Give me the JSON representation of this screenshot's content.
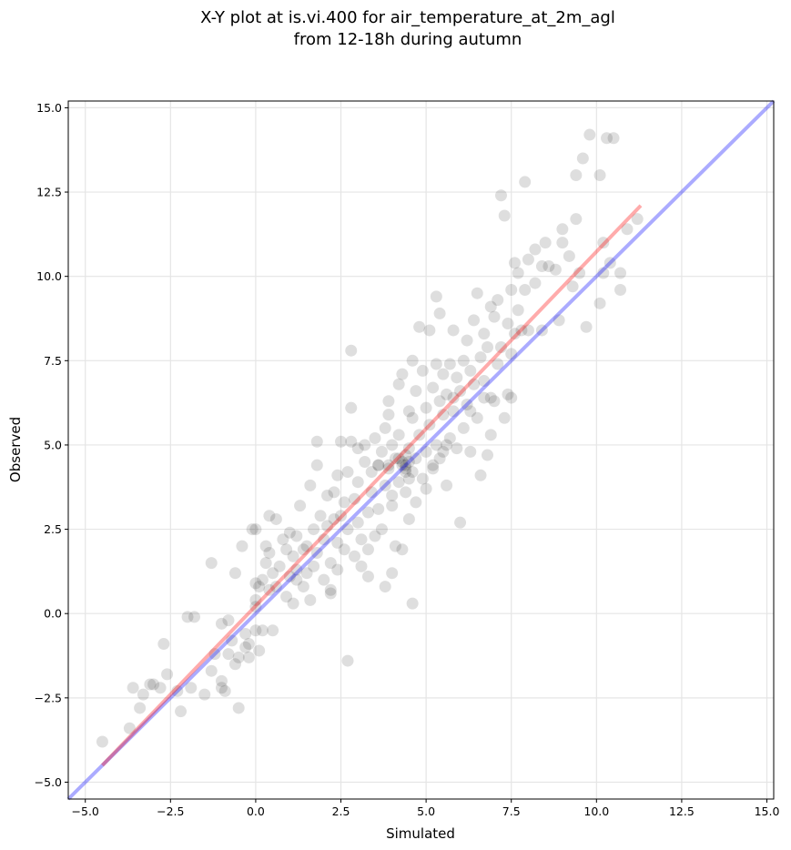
{
  "chart_data": {
    "type": "scatter",
    "title_line1": "X-Y plot at is.vi.400 for air_temperature_at_2m_agl",
    "title_line2": "from 12-18h during autumn",
    "xlabel": "Simulated",
    "ylabel": "Observed",
    "xlim": [
      -5.5,
      15.2
    ],
    "ylim": [
      -5.5,
      15.2
    ],
    "xticks": [
      -5.0,
      -2.5,
      0.0,
      2.5,
      5.0,
      7.5,
      10.0,
      12.5,
      15.0
    ],
    "yticks": [
      -5.0,
      -2.5,
      0.0,
      2.5,
      5.0,
      7.5,
      10.0,
      12.5,
      15.0
    ],
    "xtick_labels": [
      "−5.0",
      "−2.5",
      "0.0",
      "2.5",
      "5.0",
      "7.5",
      "10.0",
      "12.5",
      "15.0"
    ],
    "ytick_labels": [
      "−5.0",
      "−2.5",
      "0.0",
      "2.5",
      "5.0",
      "7.5",
      "10.0",
      "12.5",
      "15.0"
    ],
    "grid": true,
    "colors": {
      "points": "#000000",
      "regression_line": "#ff0000",
      "identity_line": "#0000ff",
      "grid": "#e5e5e5"
    },
    "regression_line": {
      "x": [
        -4.5,
        11.3
      ],
      "y": [
        -4.5,
        12.1
      ]
    },
    "identity_line": {
      "x": [
        -5.5,
        15.2
      ],
      "y": [
        -5.5,
        15.2
      ]
    },
    "points": [
      [
        -4.5,
        -3.8
      ],
      [
        -3.7,
        -3.4
      ],
      [
        -3.6,
        -2.2
      ],
      [
        -3.4,
        -2.8
      ],
      [
        -3.3,
        -2.4
      ],
      [
        -3.1,
        -2.1
      ],
      [
        -3.0,
        -2.1
      ],
      [
        -2.7,
        -0.9
      ],
      [
        -2.6,
        -1.8
      ],
      [
        -2.8,
        -2.2
      ],
      [
        -2.3,
        -2.3
      ],
      [
        -2.2,
        -2.9
      ],
      [
        -2.0,
        -0.1
      ],
      [
        -1.8,
        -0.1
      ],
      [
        -1.5,
        -2.4
      ],
      [
        -1.3,
        1.5
      ],
      [
        -1.3,
        -1.7
      ],
      [
        -1.2,
        -1.2
      ],
      [
        -1.0,
        -0.3
      ],
      [
        -1.0,
        -2.0
      ],
      [
        -1.0,
        -2.2
      ],
      [
        -0.9,
        -2.3
      ],
      [
        -0.8,
        -0.2
      ],
      [
        -0.8,
        -1.2
      ],
      [
        -0.7,
        -0.8
      ],
      [
        -0.6,
        -1.5
      ],
      [
        -0.6,
        1.2
      ],
      [
        -0.5,
        -1.3
      ],
      [
        -0.5,
        -2.8
      ],
      [
        -0.4,
        2.0
      ],
      [
        -0.3,
        -0.6
      ],
      [
        -0.3,
        -1.0
      ],
      [
        -0.2,
        -1.3
      ],
      [
        -0.1,
        2.5
      ],
      [
        0.0,
        2.5
      ],
      [
        0.0,
        0.9
      ],
      [
        -0.2,
        -0.9
      ],
      [
        0.0,
        -0.5
      ],
      [
        0.0,
        0.2
      ],
      [
        0.0,
        0.4
      ],
      [
        0.1,
        0.8
      ],
      [
        0.1,
        -1.1
      ],
      [
        0.2,
        -0.5
      ],
      [
        0.2,
        1.0
      ],
      [
        0.3,
        1.5
      ],
      [
        0.3,
        2.0
      ],
      [
        0.4,
        1.8
      ],
      [
        0.4,
        2.9
      ],
      [
        0.5,
        -0.5
      ],
      [
        0.5,
        1.2
      ],
      [
        0.6,
        0.8
      ],
      [
        0.6,
        2.8
      ],
      [
        0.7,
        1.4
      ],
      [
        0.8,
        2.2
      ],
      [
        0.9,
        1.9
      ],
      [
        0.9,
        0.5
      ],
      [
        1.0,
        1.1
      ],
      [
        1.0,
        2.4
      ],
      [
        1.1,
        1.7
      ],
      [
        1.1,
        0.3
      ],
      [
        1.2,
        1.3
      ],
      [
        1.2,
        1.0
      ],
      [
        1.3,
        3.2
      ],
      [
        1.4,
        1.9
      ],
      [
        1.4,
        0.8
      ],
      [
        1.5,
        1.2
      ],
      [
        1.5,
        2.0
      ],
      [
        1.6,
        3.8
      ],
      [
        1.6,
        0.4
      ],
      [
        1.7,
        2.5
      ],
      [
        1.7,
        1.4
      ],
      [
        1.8,
        1.8
      ],
      [
        1.8,
        5.1
      ],
      [
        1.8,
        4.4
      ],
      [
        1.9,
        2.9
      ],
      [
        2.0,
        2.2
      ],
      [
        2.0,
        1.0
      ],
      [
        2.1,
        2.6
      ],
      [
        2.1,
        3.5
      ],
      [
        2.2,
        1.5
      ],
      [
        2.2,
        0.7
      ],
      [
        2.3,
        2.8
      ],
      [
        2.3,
        3.6
      ],
      [
        2.4,
        2.1
      ],
      [
        2.4,
        1.3
      ],
      [
        2.4,
        4.1
      ],
      [
        2.5,
        5.1
      ],
      [
        2.5,
        2.9
      ],
      [
        2.6,
        3.3
      ],
      [
        2.6,
        1.9
      ],
      [
        2.7,
        2.5
      ],
      [
        2.7,
        4.2
      ],
      [
        2.8,
        5.1
      ],
      [
        2.8,
        6.1
      ],
      [
        2.8,
        7.8
      ],
      [
        2.9,
        3.4
      ],
      [
        2.9,
        1.7
      ],
      [
        3.0,
        2.7
      ],
      [
        3.0,
        4.9
      ],
      [
        3.0,
        3.9
      ],
      [
        3.1,
        1.4
      ],
      [
        3.1,
        2.2
      ],
      [
        3.2,
        4.5
      ],
      [
        3.2,
        5.0
      ],
      [
        3.3,
        3.0
      ],
      [
        3.3,
        1.9
      ],
      [
        3.4,
        3.6
      ],
      [
        3.4,
        4.2
      ],
      [
        3.5,
        2.3
      ],
      [
        3.5,
        5.2
      ],
      [
        3.6,
        4.4
      ],
      [
        3.6,
        3.1
      ],
      [
        3.7,
        4.8
      ],
      [
        3.7,
        2.5
      ],
      [
        3.8,
        5.5
      ],
      [
        3.8,
        0.8
      ],
      [
        3.8,
        3.8
      ],
      [
        3.9,
        4.3
      ],
      [
        3.9,
        6.3
      ],
      [
        4.0,
        3.2
      ],
      [
        4.0,
        5.0
      ],
      [
        4.0,
        1.2
      ],
      [
        4.0,
        3.5
      ],
      [
        4.1,
        4.6
      ],
      [
        4.1,
        2.0
      ],
      [
        4.2,
        6.8
      ],
      [
        4.2,
        3.9
      ],
      [
        4.2,
        5.3
      ],
      [
        4.3,
        7.1
      ],
      [
        4.3,
        4.5
      ],
      [
        4.3,
        1.9
      ],
      [
        4.4,
        4.3
      ],
      [
        4.4,
        4.7
      ],
      [
        4.4,
        3.6
      ],
      [
        4.5,
        4.9
      ],
      [
        4.5,
        6.0
      ],
      [
        4.5,
        2.8
      ],
      [
        4.6,
        5.8
      ],
      [
        4.6,
        4.2
      ],
      [
        4.6,
        0.3
      ],
      [
        4.7,
        6.6
      ],
      [
        4.7,
        4.6
      ],
      [
        4.7,
        3.3
      ],
      [
        4.8,
        8.5
      ],
      [
        4.8,
        5.3
      ],
      [
        4.9,
        4.0
      ],
      [
        4.9,
        7.2
      ],
      [
        5.0,
        6.1
      ],
      [
        5.0,
        4.8
      ],
      [
        5.0,
        3.7
      ],
      [
        5.1,
        8.4
      ],
      [
        5.1,
        5.6
      ],
      [
        5.2,
        4.3
      ],
      [
        5.2,
        6.7
      ],
      [
        5.3,
        9.4
      ],
      [
        5.3,
        5.0
      ],
      [
        5.4,
        6.3
      ],
      [
        5.4,
        8.9
      ],
      [
        5.4,
        4.6
      ],
      [
        5.5,
        7.1
      ],
      [
        5.5,
        5.9
      ],
      [
        5.6,
        3.8
      ],
      [
        5.6,
        6.5
      ],
      [
        5.7,
        7.4
      ],
      [
        5.7,
        5.2
      ],
      [
        5.8,
        8.4
      ],
      [
        5.8,
        6.0
      ],
      [
        5.9,
        7.0
      ],
      [
        5.9,
        4.9
      ],
      [
        6.0,
        2.7
      ],
      [
        6.0,
        6.6
      ],
      [
        6.1,
        7.5
      ],
      [
        6.1,
        5.5
      ],
      [
        6.2,
        8.1
      ],
      [
        6.2,
        6.2
      ],
      [
        6.3,
        7.2
      ],
      [
        6.3,
        4.8
      ],
      [
        6.4,
        8.7
      ],
      [
        6.4,
        6.8
      ],
      [
        6.5,
        5.8
      ],
      [
        6.5,
        9.5
      ],
      [
        6.6,
        7.6
      ],
      [
        6.6,
        4.1
      ],
      [
        6.7,
        8.3
      ],
      [
        6.7,
        6.4
      ],
      [
        6.8,
        7.9
      ],
      [
        6.8,
        4.7
      ],
      [
        6.9,
        9.1
      ],
      [
        6.9,
        5.3
      ],
      [
        7.0,
        8.8
      ],
      [
        7.0,
        6.3
      ],
      [
        7.1,
        7.4
      ],
      [
        7.1,
        9.3
      ],
      [
        7.2,
        12.4
      ],
      [
        7.2,
        7.9
      ],
      [
        7.3,
        5.8
      ],
      [
        7.3,
        11.8
      ],
      [
        7.4,
        6.5
      ],
      [
        7.4,
        8.6
      ],
      [
        7.5,
        9.6
      ],
      [
        7.5,
        7.7
      ],
      [
        7.6,
        10.4
      ],
      [
        7.6,
        8.3
      ],
      [
        7.7,
        10.1
      ],
      [
        7.7,
        9.0
      ],
      [
        7.8,
        8.4
      ],
      [
        7.9,
        12.8
      ],
      [
        7.9,
        9.6
      ],
      [
        8.0,
        10.5
      ],
      [
        8.0,
        8.4
      ],
      [
        8.2,
        10.8
      ],
      [
        8.2,
        9.8
      ],
      [
        8.4,
        10.3
      ],
      [
        8.4,
        8.4
      ],
      [
        8.5,
        11.0
      ],
      [
        8.6,
        10.3
      ],
      [
        8.8,
        10.2
      ],
      [
        8.9,
        8.7
      ],
      [
        9.0,
        11.4
      ],
      [
        9.0,
        11.0
      ],
      [
        9.2,
        10.6
      ],
      [
        9.3,
        9.7
      ],
      [
        9.4,
        13.0
      ],
      [
        9.4,
        11.7
      ],
      [
        9.5,
        10.1
      ],
      [
        9.6,
        13.5
      ],
      [
        9.7,
        8.5
      ],
      [
        9.8,
        14.2
      ],
      [
        10.1,
        13.0
      ],
      [
        10.1,
        9.2
      ],
      [
        10.2,
        11.0
      ],
      [
        10.2,
        10.1
      ],
      [
        10.3,
        14.1
      ],
      [
        10.4,
        10.4
      ],
      [
        10.5,
        14.1
      ],
      [
        10.7,
        9.6
      ],
      [
        10.7,
        10.1
      ],
      [
        10.9,
        11.4
      ],
      [
        11.2,
        11.7
      ],
      [
        2.7,
        -1.4
      ],
      [
        -1.9,
        -2.2
      ],
      [
        2.2,
        0.6
      ],
      [
        3.3,
        1.1
      ],
      [
        1.2,
        2.3
      ],
      [
        0.4,
        0.7
      ],
      [
        6.7,
        6.9
      ],
      [
        5.3,
        7.4
      ],
      [
        4.6,
        7.5
      ],
      [
        3.9,
        5.9
      ],
      [
        5.8,
        6.4
      ],
      [
        6.3,
        6.0
      ],
      [
        6.9,
        6.4
      ],
      [
        7.5,
        6.4
      ],
      [
        4.3,
        4.4
      ],
      [
        4.4,
        4.4
      ],
      [
        4.5,
        4.5
      ],
      [
        4.2,
        4.6
      ],
      [
        4.4,
        4.2
      ],
      [
        4.5,
        4.0
      ],
      [
        3.9,
        4.4
      ],
      [
        3.6,
        4.4
      ],
      [
        5.2,
        4.4
      ],
      [
        5.5,
        4.8
      ],
      [
        5.6,
        5.0
      ]
    ]
  }
}
